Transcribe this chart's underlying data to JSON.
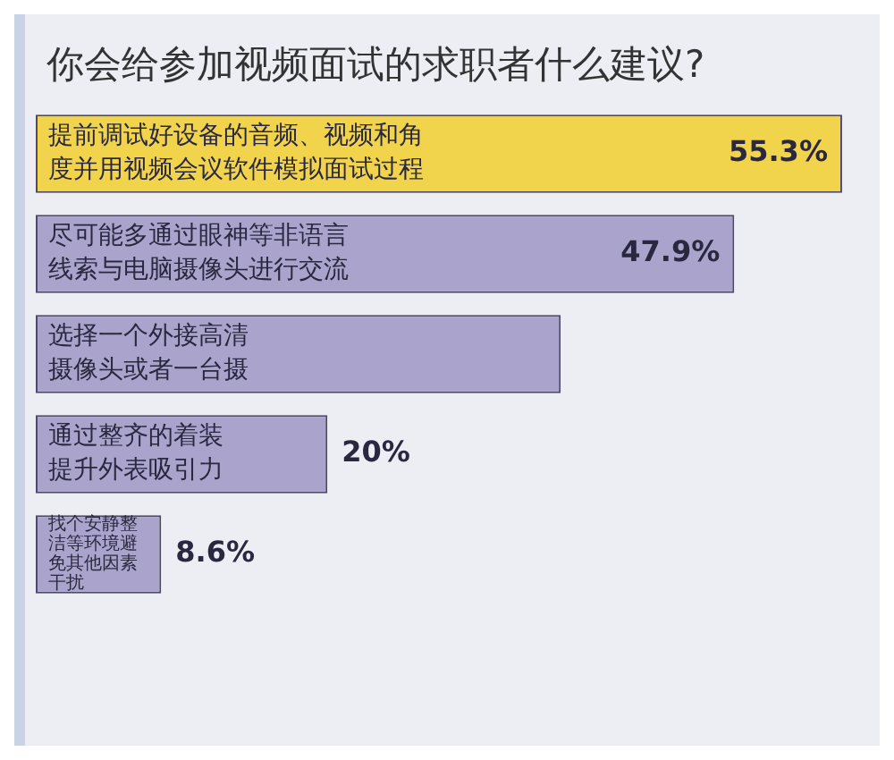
{
  "chart_data": {
    "type": "bar",
    "orientation": "horizontal",
    "title": "你会给参加视频面试的求职者什么建议?",
    "categories": [
      "提前调试好设备的音频、视频和角度并用视频会议软件模拟面试过程",
      "尽可能多通过眼神等非语言线索与电脑摄像头进行交流",
      "选择一个外接高清摄像头或者一台摄",
      "通过整齐的着装提升外表吸引力",
      "找个安静整洁等环境避免其他因素干扰"
    ],
    "values": [
      55.3,
      47.9,
      36,
      20,
      8.6
    ],
    "colors": [
      "#f1d44c",
      "#aaa4cc",
      "#aaa4cc",
      "#aaa4cc",
      "#aaa4cc"
    ],
    "value_labels": [
      "55.3%",
      "47.9%",
      null,
      "20%",
      "8.6%"
    ],
    "legend": false
  }
}
